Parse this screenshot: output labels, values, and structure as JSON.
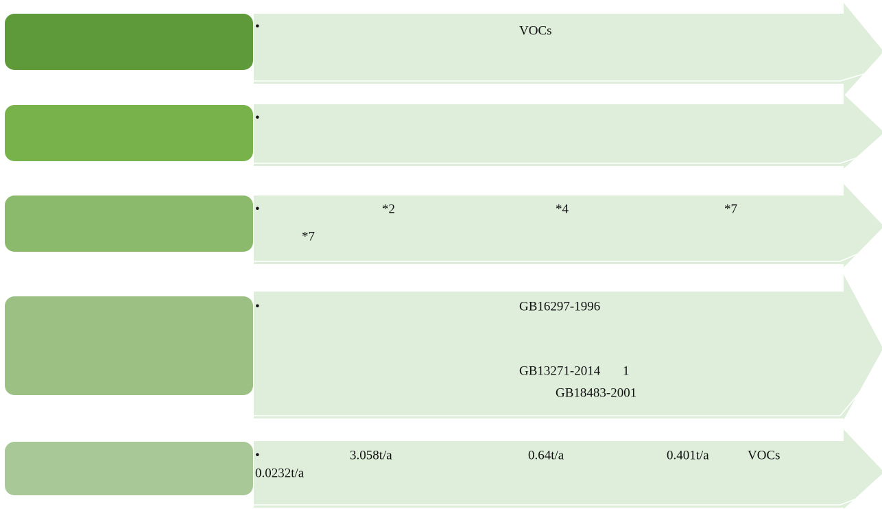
{
  "rows": [
    {
      "bullet": "•",
      "texts": [
        "VOCs"
      ]
    },
    {
      "bullet": "•",
      "texts": []
    },
    {
      "bullet": "•",
      "texts": [
        "*2",
        "*4",
        "*7",
        "*7"
      ]
    },
    {
      "bullet": "•",
      "texts": [
        "GB16297-1996",
        "GB13271-2014",
        "1",
        "GB18483-2001"
      ]
    },
    {
      "bullet": "•",
      "texts": [
        "3.058t/a",
        "0.64t/a",
        "0.401t/a",
        "VOCs",
        "0.0232t/a"
      ]
    }
  ]
}
